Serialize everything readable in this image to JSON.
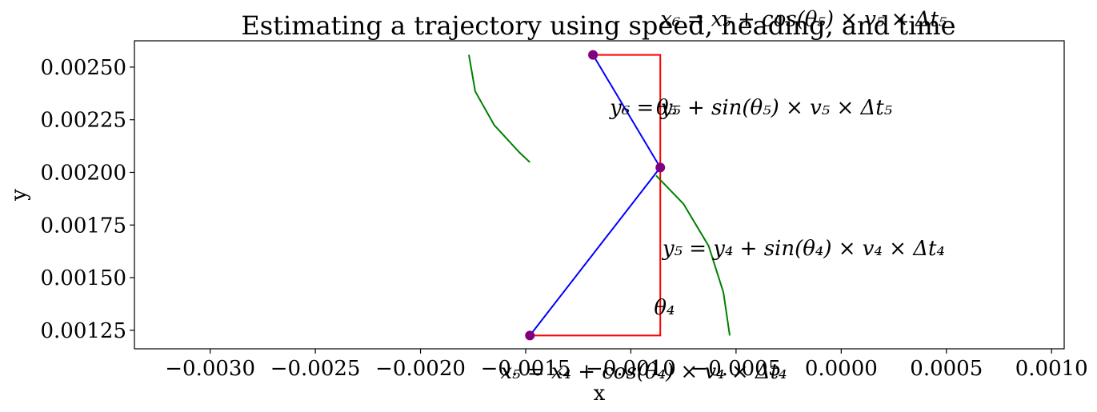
{
  "chart_data": {
    "type": "line",
    "title": "Estimating a trajectory using speed, heading, and time",
    "xlabel": "x",
    "ylabel": "y",
    "xlim": [
      -0.00336,
      0.00106
    ],
    "ylim": [
      0.001162,
      0.002625
    ],
    "xticks": [
      -0.003,
      -0.0025,
      -0.002,
      -0.0015,
      -0.001,
      -0.0005,
      0.0,
      0.0005,
      0.001
    ],
    "xtick_labels": [
      "−0.0030",
      "−0.0025",
      "−0.0020",
      "−0.0015",
      "−0.0010",
      "−0.0005",
      "0.0000",
      "0.0005",
      "0.0010"
    ],
    "yticks": [
      0.00125,
      0.0015,
      0.00175,
      0.002,
      0.00225,
      0.0025
    ],
    "ytick_labels": [
      "0.00125",
      "0.00150",
      "0.00175",
      "0.00200",
      "0.00225",
      "0.00250"
    ],
    "grid": false,
    "legend": "none",
    "series": [
      {
        "role": "trajectory",
        "color": "#0000ff",
        "x": [
          -0.00148,
          -0.00086,
          -0.00118
        ],
        "y": [
          0.001225,
          0.002023,
          0.002558
        ]
      },
      {
        "role": "component-triangle-4",
        "color": "#ff0000",
        "x": [
          -0.00148,
          -0.00086,
          -0.00086
        ],
        "y": [
          0.001225,
          0.001225,
          0.002023
        ]
      },
      {
        "role": "component-triangle-5",
        "color": "#ff0000",
        "x": [
          -0.00086,
          -0.00086,
          -0.00118
        ],
        "y": [
          0.002023,
          0.002558,
          0.002558
        ]
      },
      {
        "role": "heading-arc-4",
        "color": "#008000",
        "x": [
          -0.00088,
          -0.00075,
          -0.00063,
          -0.00056,
          -0.00053
        ],
        "y": [
          0.001985,
          0.00185,
          0.00165,
          0.00143,
          0.001225
        ]
      },
      {
        "role": "heading-arc-5",
        "color": "#008000",
        "x": [
          -0.00177,
          -0.00174,
          -0.00165,
          -0.00153,
          -0.00148
        ],
        "y": [
          0.002558,
          0.002385,
          0.002225,
          0.002095,
          0.002048
        ]
      }
    ],
    "points": {
      "color": "#800080",
      "x": [
        -0.00148,
        -0.00086,
        -0.00118
      ],
      "y": [
        0.001225,
        0.002023,
        0.002558
      ]
    },
    "annotations": [
      {
        "text": "θ₄",
        "x": -0.00089,
        "y": 0.00136,
        "anchor": "start"
      },
      {
        "text": "θ₅",
        "x": -0.00088,
        "y": 0.00231,
        "anchor": "start"
      },
      {
        "text": "y₅ = y₄ + sin(θ₄) × v₄ × Δt₄",
        "x": -0.00085,
        "y": 0.00164,
        "anchor": "start"
      },
      {
        "text": "y₆ = y₅ + sin(θ₅) × v₅ × Δt₅",
        "x": -0.0011,
        "y": 0.00231,
        "anchor": "start"
      },
      {
        "text": "x₅ = x₄ + cos(θ₄) × v₄ × Δt₄",
        "x": -0.00162,
        "y": 0.001055,
        "anchor": "start"
      },
      {
        "text": "x₆ = x₅ + cos(θ₅) × v₅ × Δt₅",
        "x": -0.00086,
        "y": 0.00273,
        "anchor": "start"
      }
    ]
  }
}
